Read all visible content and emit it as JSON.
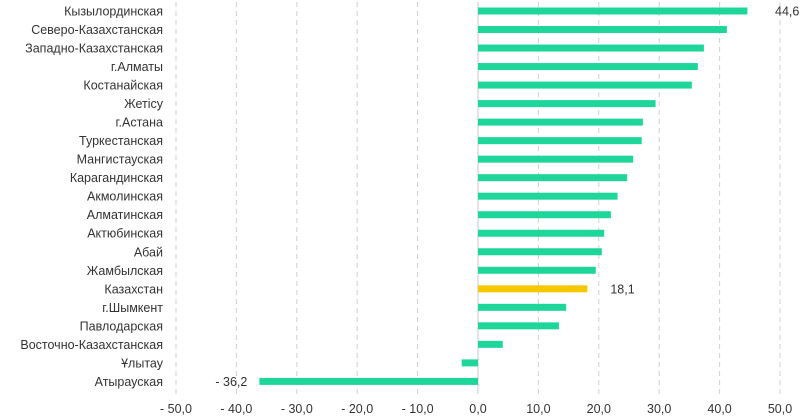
{
  "chart_data": {
    "type": "bar",
    "orientation": "horizontal",
    "title": "",
    "xlabel": "",
    "ylabel": "",
    "xlim": [
      -50,
      50
    ],
    "x_ticks": [
      {
        "value": -50,
        "label": "- 50,0"
      },
      {
        "value": -40,
        "label": "- 40,0"
      },
      {
        "value": -30,
        "label": "- 30,0"
      },
      {
        "value": -20,
        "label": "- 20,0"
      },
      {
        "value": -10,
        "label": "- 10,0"
      },
      {
        "value": 0,
        "label": "0,0"
      },
      {
        "value": 10,
        "label": "10,0"
      },
      {
        "value": 20,
        "label": "20,0"
      },
      {
        "value": 30,
        "label": "30,0"
      },
      {
        "value": 40,
        "label": "40,0"
      },
      {
        "value": 50,
        "label": "50,0"
      }
    ],
    "grid": "vertical dashed",
    "colors": {
      "default": "#1ed69a",
      "highlight": "#f5c800"
    },
    "categories": [
      "Кызылординская",
      "Северо-Казахстанская",
      "Западно-Казахстанская",
      "г.Алматы",
      "Костанайская",
      "Жетісу",
      "г.Астана",
      "Туркестанская",
      "Мангистауская",
      "Карагандинская",
      "Акмолинская",
      "Алматинская",
      "Актюбинская",
      "Абай",
      "Жамбылская",
      "Казахстан",
      "г.Шымкент",
      "Павлодарская",
      "Восточно-Казахстанская",
      "Ұлытау",
      "Атырауская"
    ],
    "values": [
      44.6,
      41.2,
      37.4,
      36.4,
      35.4,
      29.4,
      27.3,
      27.1,
      25.7,
      24.7,
      23.1,
      22.0,
      20.9,
      20.5,
      19.5,
      18.1,
      14.6,
      13.4,
      4.1,
      -2.7,
      -36.2
    ],
    "highlight_index": 15,
    "data_labels": [
      {
        "index": 0,
        "text": "44,6"
      },
      {
        "index": 15,
        "text": "18,1"
      },
      {
        "index": 20,
        "text": "- 36,2"
      }
    ]
  }
}
